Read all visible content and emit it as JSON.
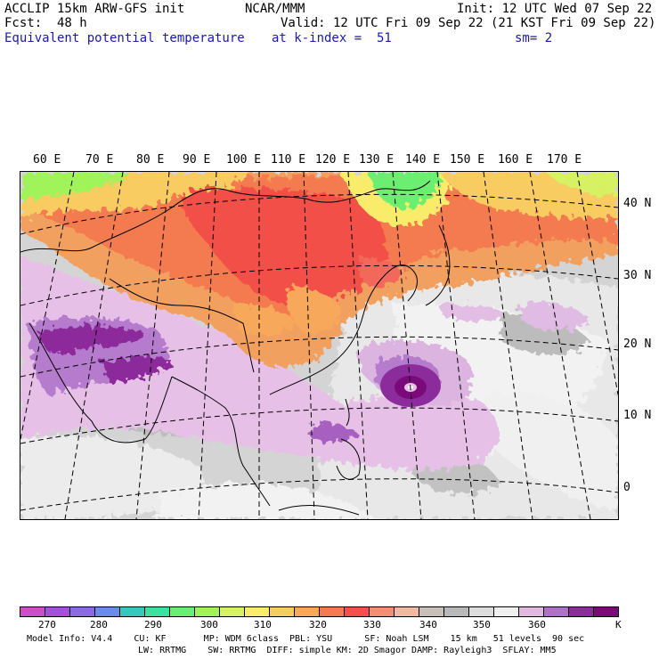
{
  "header": {
    "model": "ACCLIP 15km ARW-GFS init",
    "org": "NCAR/MMM",
    "init": "Init: 12 UTC Wed 07 Sep 22",
    "fcst": "Fcst:  48 h",
    "valid": "Valid: 12 UTC Fri 09 Sep 22 (21 KST Fri 09 Sep 22)",
    "field": "Equivalent potential temperature",
    "level": "at k-index =  51",
    "smooth": "sm= 2"
  },
  "map": {
    "lon_labels": [
      "60 E",
      "70 E",
      "80 E",
      "90 E",
      "100 E",
      "110 E",
      "120 E",
      "130 E",
      "140 E",
      "150 E",
      "160 E",
      "170 E"
    ],
    "lat_labels": [
      "40 N",
      "30 N",
      "20 N",
      "10 N",
      "0"
    ],
    "features": {
      "typhoon_center": {
        "lon": 134,
        "lat": 16
      }
    }
  },
  "colorbar": {
    "colors": [
      "#c84fc9",
      "#a64fd8",
      "#8a6ae0",
      "#6a8ce8",
      "#38c8c0",
      "#3ce0a0",
      "#6cef70",
      "#a0f45a",
      "#d6f264",
      "#f8ec6a",
      "#f8cc60",
      "#f8a85a",
      "#f47a50",
      "#f25048",
      "#f29070",
      "#f2b8a0",
      "#c8c0b8",
      "#b8b8b8",
      "#dcdcdc",
      "#f0f0f0",
      "#e0b8e0",
      "#b070c8",
      "#8c2c9c",
      "#7a0a7a"
    ],
    "labels": [
      "270",
      "280",
      "290",
      "300",
      "310",
      "320",
      "330",
      "340",
      "350",
      "360"
    ],
    "unit": "K"
  },
  "footer": {
    "line1": "Model Info: V4.4    CU: KF       MP: WDM 6class  PBL: YSU      SF: Noah LSM    15 km   51 levels  90 sec",
    "line2": "LW: RRTMG    SW: RRTMG  DIFF: simple KM: 2D Smagor DAMP: Rayleigh3  SFLAY: MM5"
  }
}
